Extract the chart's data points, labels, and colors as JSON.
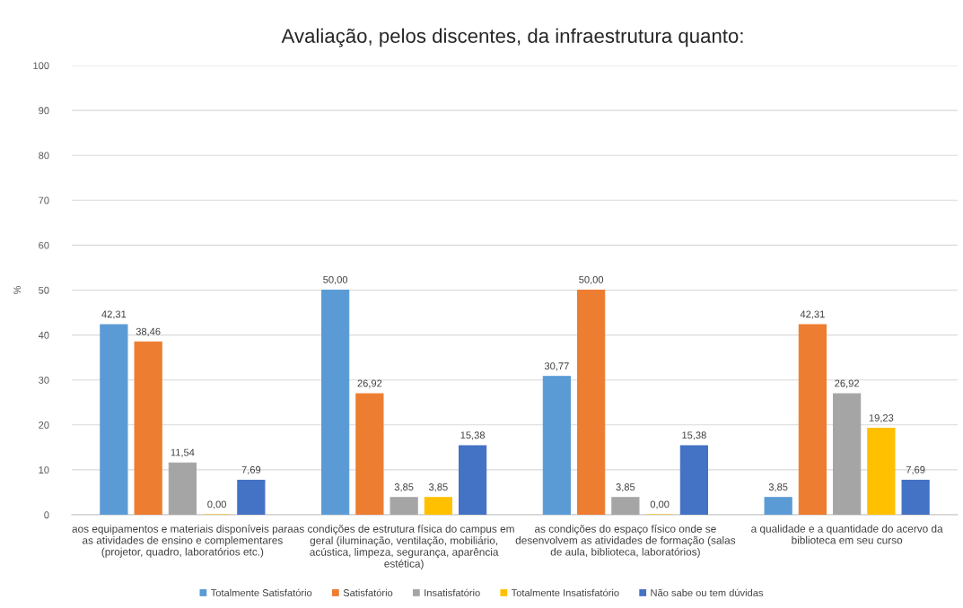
{
  "chart_data": {
    "type": "bar",
    "title": "Avaliação, pelos discentes, da infraestrutura quanto:",
    "ylabel": "%",
    "categories": [
      "aos equipamentos e materiais disponíveis para\nas atividades de ensino e complementares\n(projetor, quadro, laboratórios etc.)",
      "as condições de estrutura física do campus em\ngeral (iluminação, ventilação, mobiliário,\nacústica, limpeza, segurança, aparência\nestética)",
      "as condições do espaço físico onde se\ndesenvolvem as atividades de formação (salas\nde aula, biblioteca, laboratórios)",
      "a qualidade e a quantidade do acervo da\nbiblioteca em seu curso"
    ],
    "series": [
      {
        "name": "Totalmente Satisfatório",
        "color": "#5b9bd5",
        "values": [
          42.31,
          50.0,
          30.77,
          3.85
        ],
        "value_labels": [
          "42,31",
          "50,00",
          "30,77",
          "3,85"
        ]
      },
      {
        "name": "Satisfatório",
        "color": "#ed7d31",
        "values": [
          38.46,
          26.92,
          50.0,
          42.31
        ],
        "value_labels": [
          "38,46",
          "26,92",
          "50,00",
          "42,31"
        ]
      },
      {
        "name": "Insatisfatório",
        "color": "#a5a5a5",
        "values": [
          11.54,
          3.85,
          3.85,
          26.92
        ],
        "value_labels": [
          "11,54",
          "3,85",
          "3,85",
          "26,92"
        ]
      },
      {
        "name": "Totalmente Insatisfatório",
        "color": "#ffc000",
        "values": [
          0.0,
          3.85,
          0.0,
          19.23
        ],
        "value_labels": [
          "0,00",
          "3,85",
          "0,00",
          "19,23"
        ]
      },
      {
        "name": "Não sabe ou tem dúvidas",
        "color": "#4472c4",
        "values": [
          7.69,
          15.38,
          15.38,
          7.69
        ],
        "value_labels": [
          "7,69",
          "15,38",
          "15,38",
          "7,69"
        ]
      }
    ],
    "ylim": [
      0,
      100
    ],
    "yticks": [
      0,
      10,
      20,
      30,
      40,
      50,
      60,
      70,
      80,
      90,
      100
    ],
    "grid": "y",
    "legend": "bottom"
  }
}
